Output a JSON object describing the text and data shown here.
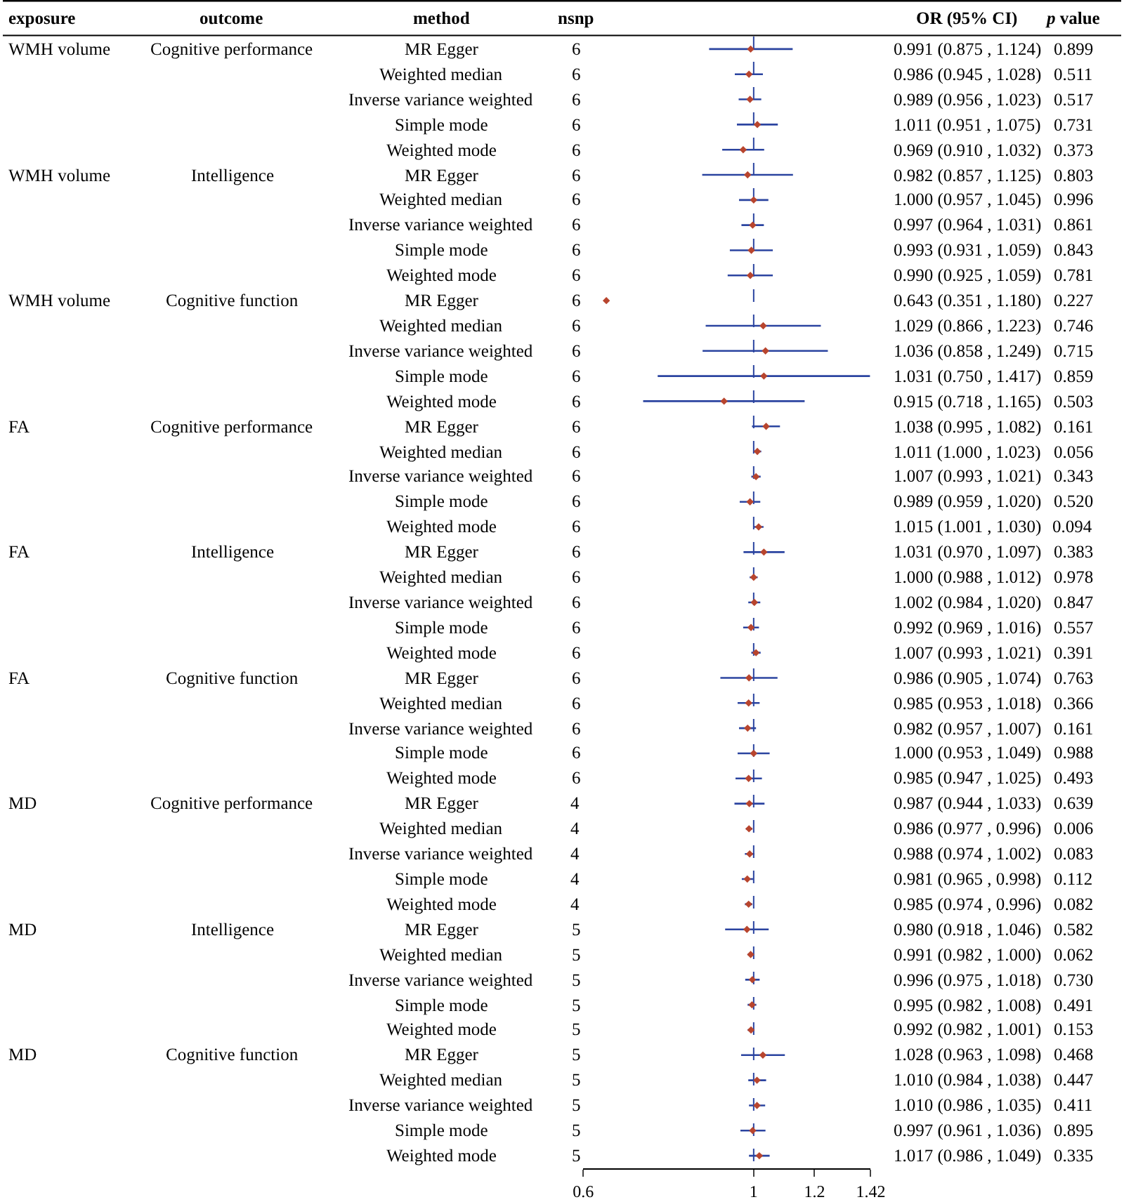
{
  "chart_data": {
    "type": "scatter",
    "orientation": "horizontal",
    "log": "x",
    "marker": "diamond",
    "grid": false,
    "tick_labels": "x",
    "categories": [
      "MR Egger",
      "Weighted median",
      "Inverse variance weighted",
      "Simple mode",
      "Weighted mode",
      "MR Egger",
      "Weighted median",
      "Inverse variance weighted",
      "Simple mode",
      "Weighted mode",
      "MR Egger",
      "Weighted median",
      "Inverse variance weighted",
      "Simple mode",
      "Weighted mode",
      "MR Egger",
      "Weighted median",
      "Inverse variance weighted",
      "Simple mode",
      "Weighted mode",
      "MR Egger",
      "Weighted median",
      "Inverse variance weighted",
      "Simple mode",
      "Weighted mode",
      "MR Egger",
      "Weighted median",
      "Inverse variance weighted",
      "Simple mode",
      "Weighted mode",
      "MR Egger",
      "Weighted median",
      "Inverse variance weighted",
      "Simple mode",
      "Weighted mode",
      "MR Egger",
      "Weighted median",
      "Inverse variance weighted",
      "Simple mode",
      "Weighted mode",
      "MR Egger",
      "Weighted median",
      "Inverse variance weighted",
      "Simple mode",
      "Weighted mode"
    ],
    "series": [
      {
        "color": "#2b44a0",
        "colors": [
          "#b8452e",
          "#b8452e",
          "#b8452e",
          "#b8452e",
          "#b8452e",
          "#b8452e",
          "#b8452e",
          "#b8452e",
          "#b8452e",
          "#b8452e",
          "#b8452e",
          "#b8452e",
          "#b8452e",
          "#b8452e",
          "#b8452e",
          "#b8452e",
          "#b8452e",
          "#b8452e",
          "#b8452e",
          "#b8452e",
          "#b8452e",
          "#b8452e",
          "#b8452e",
          "#b8452e",
          "#b8452e",
          "#b8452e",
          "#b8452e",
          "#b8452e",
          "#b8452e",
          "#b8452e",
          "#b8452e",
          "#b8452e",
          "#b8452e",
          "#b8452e",
          "#b8452e",
          "#b8452e",
          "#b8452e",
          "#b8452e",
          "#b8452e",
          "#b8452e",
          "#b8452e",
          "#b8452e",
          "#b8452e",
          "#b8452e",
          "#b8452e"
        ],
        "values": [
          0.991,
          0.986,
          0.989,
          1.011,
          0.969,
          0.982,
          1.0,
          0.997,
          0.993,
          0.99,
          0.643,
          1.029,
          1.036,
          1.031,
          0.915,
          1.038,
          1.011,
          1.007,
          0.989,
          1.015,
          1.031,
          1.0,
          1.002,
          0.992,
          1.007,
          0.986,
          0.985,
          0.982,
          1.0,
          0.985,
          0.987,
          0.986,
          0.988,
          0.981,
          0.985,
          0.98,
          0.991,
          0.996,
          0.995,
          0.992,
          1.028,
          1.01,
          1.01,
          0.997,
          1.017
        ],
        "errors": [
          [
            0.875,
            1.124
          ],
          [
            0.945,
            1.028
          ],
          [
            0.956,
            1.023
          ],
          [
            0.951,
            1.075
          ],
          [
            0.91,
            1.032
          ],
          [
            0.857,
            1.125
          ],
          [
            0.957,
            1.045
          ],
          [
            0.964,
            1.031
          ],
          [
            0.931,
            1.059
          ],
          [
            0.925,
            1.059
          ],
          null,
          [
            0.866,
            1.223
          ],
          [
            0.858,
            1.249
          ],
          [
            0.75,
            1.417
          ],
          [
            0.718,
            1.165
          ],
          [
            0.995,
            1.082
          ],
          [
            1.0,
            1.023
          ],
          [
            0.993,
            1.021
          ],
          [
            0.959,
            1.02
          ],
          [
            1.001,
            1.03
          ],
          [
            0.97,
            1.097
          ],
          [
            0.988,
            1.012
          ],
          [
            0.984,
            1.02
          ],
          [
            0.969,
            1.016
          ],
          [
            0.993,
            1.021
          ],
          [
            0.905,
            1.074
          ],
          [
            0.953,
            1.018
          ],
          [
            0.957,
            1.007
          ],
          [
            0.953,
            1.049
          ],
          [
            0.947,
            1.025
          ],
          [
            0.944,
            1.033
          ],
          [
            0.977,
            0.996
          ],
          [
            0.974,
            1.002
          ],
          [
            0.965,
            0.998
          ],
          [
            0.974,
            0.996
          ],
          [
            0.918,
            1.046
          ],
          [
            0.982,
            1.0
          ],
          [
            0.975,
            1.018
          ],
          [
            0.982,
            1.008
          ],
          [
            0.982,
            1.001
          ],
          [
            0.963,
            1.098
          ],
          [
            0.984,
            1.038
          ],
          [
            0.986,
            1.035
          ],
          [
            0.961,
            1.036
          ],
          [
            0.986,
            1.049
          ]
        ],
        "value_labels": [
          "0.991 (0.875 , 1.124)",
          "0.986 (0.945 , 1.028)",
          "0.989 (0.956 , 1.023)",
          "1.011 (0.951 , 1.075)",
          "0.969 (0.910 , 1.032)",
          "0.982 (0.857 , 1.125)",
          "1.000 (0.957 , 1.045)",
          "0.997 (0.964 , 1.031)",
          "0.993 (0.931 , 1.059)",
          "0.990 (0.925 , 1.059)",
          "0.643 (0.351 , 1.180)",
          "1.029 (0.866 , 1.223)",
          "1.036 (0.858 , 1.249)",
          "1.031 (0.750 , 1.417)",
          "0.915 (0.718 , 1.165)",
          "1.038 (0.995 , 1.082)",
          "1.011 (1.000 , 1.023)",
          "1.007 (0.993 , 1.021)",
          "0.989 (0.959 , 1.020)",
          "1.015 (1.001 , 1.030)",
          "1.031 (0.970 , 1.097)",
          "1.000 (0.988 , 1.012)",
          "1.002 (0.984 , 1.020)",
          "0.992 (0.969 , 1.016)",
          "1.007 (0.993 , 1.021)",
          "0.986 (0.905 , 1.074)",
          "0.985 (0.953 , 1.018)",
          "0.982 (0.957 , 1.007)",
          "1.000 (0.953 , 1.049)",
          "0.985 (0.947 , 1.025)",
          "0.987 (0.944 , 1.033)",
          "0.986 (0.977 , 0.996)",
          "0.988 (0.974 , 1.002)",
          "0.981 (0.965 , 0.998)",
          "0.985 (0.974 , 0.996)",
          "0.980 (0.918 , 1.046)",
          "0.991 (0.982 , 1.000)",
          "0.996 (0.975 , 1.018)",
          "0.995 (0.982 , 1.008)",
          "0.992 (0.982 , 1.001)",
          "1.028 (0.963 , 1.098)",
          "1.010 (0.984 , 1.038)",
          "1.010 (0.986 , 1.035)",
          "0.997 (0.961 , 1.036)",
          "1.017 (0.986 , 1.049)"
        ]
      }
    ],
    "xlim": [
      0.6,
      1.42
    ],
    "xticks": [
      0.6,
      1,
      1.2,
      1.42
    ],
    "ref_lines": [
      {
        "axis": "x",
        "value": 1,
        "line_style": "dashed",
        "color": "#2b44a0"
      }
    ],
    "annotations": [
      "exposure",
      "outcome",
      "method",
      "nsnp",
      "OR (95% CI)",
      "p value",
      "WMH volume",
      "WMH volume",
      "WMH volume",
      "FA",
      "FA",
      "FA",
      "MD",
      "MD",
      "MD",
      "Cognitive performance",
      "Intelligence",
      "Cognitive function",
      "Cognitive performance",
      "Intelligence",
      "Cognitive function",
      "Cognitive performance",
      "Intelligence",
      "Cognitive function",
      "6",
      "6",
      "6",
      "6",
      "6",
      "6",
      "6",
      "6",
      "6",
      "6",
      "6",
      "6",
      "6",
      "6",
      "6",
      "6",
      "6",
      "6",
      "6",
      "6",
      "6",
      "6",
      "6",
      "6",
      "6",
      "6",
      "6",
      "6",
      "6",
      "6",
      "4",
      "4",
      "4",
      "4",
      "4",
      "5",
      "5",
      "5",
      "5",
      "5",
      "5",
      "5",
      "5",
      "5",
      "5",
      "0.899",
      "0.511",
      "0.517",
      "0.731",
      "0.373",
      "0.803",
      "0.996",
      "0.861",
      "0.843",
      "0.781",
      "0.227",
      "0.746",
      "0.715",
      "0.859",
      "0.503",
      "0.161",
      "0.056",
      "0.343",
      "0.520",
      "0.094",
      "0.383",
      "0.978",
      "0.847",
      "0.557",
      "0.391",
      "0.763",
      "0.366",
      "0.161",
      "0.988",
      "0.493",
      "0.639",
      "0.006",
      "0.083",
      "0.112",
      "0.082",
      "0.582",
      "0.062",
      "0.730",
      "0.491",
      "0.153",
      "0.468",
      "0.447",
      "0.411",
      "0.895",
      "0.335"
    ]
  }
}
